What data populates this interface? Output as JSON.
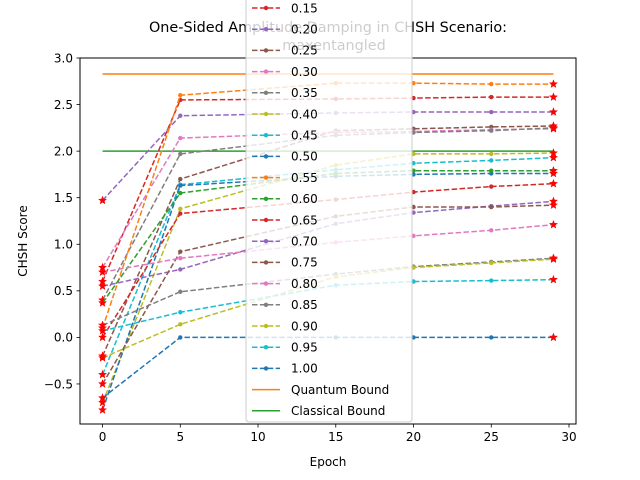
{
  "chart_data": {
    "type": "line",
    "title_line1": "One-Sided Amplitude Damping in CHSH Scenario:",
    "title_line2": "maxentangled",
    "xlabel": "Epoch",
    "ylabel": "CHSH Score",
    "xlim": [
      -1.45,
      30.45
    ],
    "ylim": [
      -0.93,
      3.0
    ],
    "xticks": [
      0,
      5,
      10,
      15,
      20,
      25,
      30
    ],
    "yticks": [
      -0.5,
      0.0,
      0.5,
      1.0,
      1.5,
      2.0,
      2.5,
      3.0
    ],
    "xtick_labels": [
      "0",
      "5",
      "10",
      "15",
      "20",
      "25",
      "30"
    ],
    "ytick_labels": [
      "−0.5",
      "0.0",
      "0.5",
      "1.0",
      "1.5",
      "2.0",
      "2.5",
      "3.0"
    ],
    "x": [
      0,
      5,
      15,
      20,
      25,
      29
    ],
    "series": [
      {
        "name": "0.15",
        "color": "#d62728",
        "values": [
          0.6,
          2.55,
          2.56,
          2.57,
          2.58,
          2.58
        ]
      },
      {
        "name": "0.20",
        "color": "#9467bd",
        "values": [
          1.47,
          2.38,
          2.41,
          2.42,
          2.42,
          2.42
        ]
      },
      {
        "name": "0.25",
        "color": "#8c564b",
        "values": [
          -0.2,
          1.7,
          2.22,
          2.24,
          2.26,
          2.27
        ]
      },
      {
        "name": "0.30",
        "color": "#e377c2",
        "values": [
          0.75,
          2.14,
          2.2,
          2.21,
          2.23,
          2.24
        ]
      },
      {
        "name": "0.35",
        "color": "#7f7f7f",
        "values": [
          0.4,
          1.97,
          2.17,
          2.2,
          2.22,
          2.25
        ]
      },
      {
        "name": "0.40",
        "color": "#bcbd22",
        "values": [
          -0.7,
          1.38,
          1.85,
          1.97,
          1.97,
          1.98
        ]
      },
      {
        "name": "0.45",
        "color": "#17becf",
        "values": [
          -0.4,
          1.64,
          1.8,
          1.87,
          1.9,
          1.93
        ]
      },
      {
        "name": "0.50",
        "color": "#1f77b4",
        "values": [
          -0.78,
          1.63,
          1.73,
          1.75,
          1.76,
          1.76
        ]
      },
      {
        "name": "0.55",
        "color": "#ff7f0e",
        "values": [
          0.1,
          2.6,
          2.73,
          2.73,
          2.72,
          2.72
        ]
      },
      {
        "name": "0.60",
        "color": "#2ca02c",
        "values": [
          0.37,
          1.55,
          1.76,
          1.79,
          1.79,
          1.79
        ]
      },
      {
        "name": "0.65",
        "color": "#d62728",
        "values": [
          0.0,
          1.33,
          1.48,
          1.56,
          1.62,
          1.65
        ]
      },
      {
        "name": "0.70",
        "color": "#9467bd",
        "values": [
          0.55,
          0.73,
          1.22,
          1.34,
          1.41,
          1.46
        ]
      },
      {
        "name": "0.75",
        "color": "#8c564b",
        "values": [
          -0.5,
          0.92,
          1.3,
          1.4,
          1.4,
          1.42
        ]
      },
      {
        "name": "0.80",
        "color": "#e377c2",
        "values": [
          0.7,
          0.85,
          1.02,
          1.09,
          1.15,
          1.21
        ]
      },
      {
        "name": "0.85",
        "color": "#7f7f7f",
        "values": [
          0.13,
          0.49,
          0.68,
          0.76,
          0.81,
          0.85
        ]
      },
      {
        "name": "0.90",
        "color": "#bcbd22",
        "values": [
          -0.22,
          0.14,
          0.65,
          0.75,
          0.8,
          0.84
        ]
      },
      {
        "name": "0.95",
        "color": "#17becf",
        "values": [
          0.07,
          0.27,
          0.56,
          0.6,
          0.61,
          0.62
        ]
      },
      {
        "name": "1.00",
        "color": "#1f77b4",
        "values": [
          -0.65,
          0.0,
          0.0,
          0.0,
          0.0,
          0.0
        ]
      }
    ],
    "bounds": [
      {
        "name": "Quantum Bound",
        "color": "#ff7f0e",
        "value": 2.828
      },
      {
        "name": "Classical Bound",
        "color": "#2ca02c",
        "value": 2.0
      }
    ],
    "grid": false,
    "legend_placement": "upper-center"
  }
}
